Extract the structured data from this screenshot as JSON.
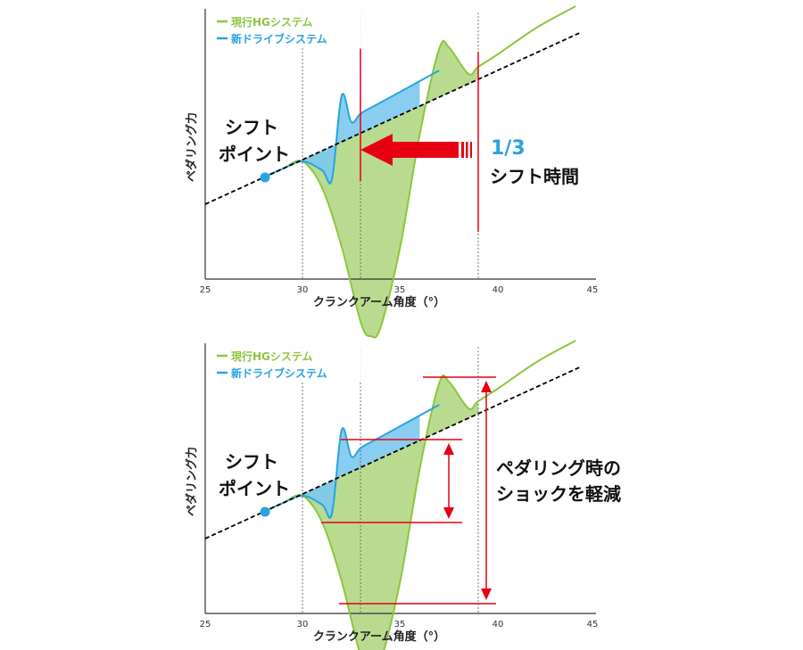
{
  "colors": {
    "hg": "#8cc63f",
    "hg_fill": "#b5d98a",
    "drive": "#29a3e0",
    "drive_fill": "#7cc8ee",
    "marker": "#e60012",
    "guide": "#000000"
  },
  "chart_data": [
    {
      "type": "line",
      "xlabel": "クランクアーム角度（°）",
      "ylabel": "ペダリング力",
      "xlim": [
        25,
        45
      ],
      "x_ticks": [
        "25",
        "30",
        "35",
        "40",
        "45"
      ],
      "grid": false,
      "legend_position": "top-left",
      "series": [
        {
          "name": "現行HGシステム",
          "color": "#8cc63f",
          "x": [
            28.0,
            29.0,
            30.0,
            31.0,
            32.0,
            33.0,
            33.5,
            34.0,
            35.0,
            36.0,
            37.0,
            37.5,
            38.5,
            39.0,
            40.0,
            42.0,
            44.0
          ],
          "y": [
            0.44,
            0.49,
            0.53,
            0.38,
            0.05,
            -0.38,
            -0.45,
            -0.4,
            0.05,
            0.68,
            1.16,
            1.17,
            1.02,
            1.06,
            1.13,
            1.28,
            1.4
          ]
        },
        {
          "name": "新ドライブシステム",
          "color": "#29a3e0",
          "x": [
            28.0,
            29.0,
            30.0,
            31.0,
            31.5,
            32.0,
            32.5,
            33.0,
            34.0,
            35.0,
            36.0,
            37.0
          ],
          "y": [
            0.44,
            0.49,
            0.53,
            0.48,
            0.43,
            0.9,
            0.75,
            0.8,
            0.86,
            0.92,
            0.98,
            1.04
          ]
        }
      ],
      "annotations": [
        {
          "text": "シフト"
        },
        {
          "text": "ポイント"
        },
        {
          "text": "1/3",
          "color": "#29a3e0"
        },
        {
          "text": "シフト時間"
        }
      ]
    },
    {
      "type": "line",
      "xlabel": "クランクアーム角度（°）",
      "ylabel": "ペダリング力",
      "xlim": [
        25,
        45
      ],
      "x_ticks": [
        "25",
        "30",
        "35",
        "40",
        "45"
      ],
      "grid": false,
      "legend_position": "top-left",
      "series": [
        {
          "name": "現行HGシステム",
          "color": "#8cc63f",
          "x": [
            28.0,
            29.0,
            30.0,
            31.0,
            32.0,
            33.0,
            33.5,
            34.0,
            35.0,
            36.0,
            37.0,
            37.5,
            38.5,
            39.0,
            40.0,
            42.0,
            44.0
          ],
          "y": [
            0.44,
            0.49,
            0.53,
            0.38,
            0.05,
            -0.38,
            -0.45,
            -0.4,
            0.05,
            0.68,
            1.16,
            1.17,
            1.02,
            1.06,
            1.13,
            1.28,
            1.4
          ]
        },
        {
          "name": "新ドライブシステム",
          "color": "#29a3e0",
          "x": [
            28.0,
            29.0,
            30.0,
            31.0,
            31.5,
            32.0,
            32.5,
            33.0,
            34.0,
            35.0,
            36.0,
            37.0
          ],
          "y": [
            0.44,
            0.49,
            0.53,
            0.48,
            0.43,
            0.9,
            0.75,
            0.8,
            0.86,
            0.92,
            0.98,
            1.04
          ]
        }
      ],
      "annotations": [
        {
          "text": "シフト"
        },
        {
          "text": "ポイント"
        },
        {
          "text": "ペダリング時の"
        },
        {
          "text": "ショックを軽減"
        }
      ]
    }
  ]
}
